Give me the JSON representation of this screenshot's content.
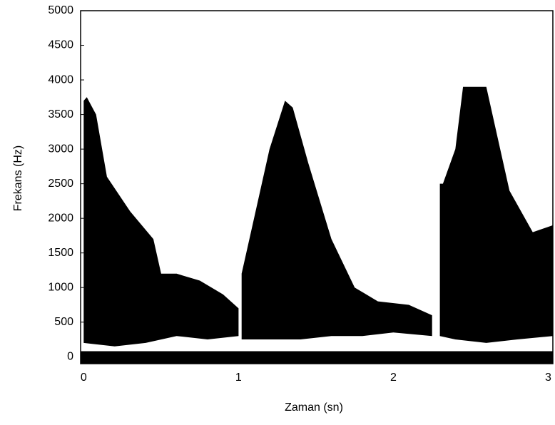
{
  "chart_data": {
    "type": "spectrogram",
    "x_label": "Zaman (sn)",
    "y_label": "Frekans (Hz)",
    "xlim": [
      -0.02,
      3.03
    ],
    "ylim": [
      -100,
      5000
    ],
    "xticks": [
      0,
      1,
      2,
      3
    ],
    "yticks": [
      0,
      500,
      1000,
      1500,
      2000,
      2500,
      3000,
      3500,
      4000,
      4500,
      5000
    ],
    "color": "#000000",
    "regions": [
      {
        "time": [
          0,
          0.02,
          0.08,
          0.15,
          0.3,
          0.45,
          0.5,
          0.6,
          0.75,
          0.9,
          1.0,
          1.0,
          0.8,
          0.6,
          0.4,
          0.2,
          0
        ],
        "frequency": [
          3700,
          3750,
          3500,
          2600,
          2100,
          1700,
          1200,
          1200,
          1100,
          900,
          700,
          300,
          250,
          300,
          200,
          150,
          200
        ]
      },
      {
        "time": [
          1.02,
          1.1,
          1.2,
          1.3,
          1.35,
          1.45,
          1.6,
          1.75,
          1.9,
          2.1,
          2.25,
          2.25,
          2.0,
          1.8,
          1.6,
          1.4,
          1.2,
          1.02
        ],
        "frequency": [
          1200,
          2000,
          3000,
          3700,
          3600,
          2800,
          1700,
          1000,
          800,
          750,
          600,
          300,
          350,
          300,
          300,
          250,
          250,
          250
        ]
      },
      {
        "time": [
          2.3,
          2.32,
          2.4,
          2.45,
          2.6,
          2.65,
          2.75,
          2.9,
          3.03,
          3.03,
          2.8,
          2.6,
          2.4,
          2.3
        ],
        "frequency": [
          2500,
          2500,
          3000,
          3900,
          3900,
          3400,
          2400,
          1800,
          1900,
          300,
          250,
          200,
          250,
          300
        ]
      },
      {
        "time": [
          -0.02,
          3.03,
          3.03,
          -0.02
        ],
        "frequency": [
          80,
          80,
          -100,
          -100
        ]
      }
    ]
  }
}
